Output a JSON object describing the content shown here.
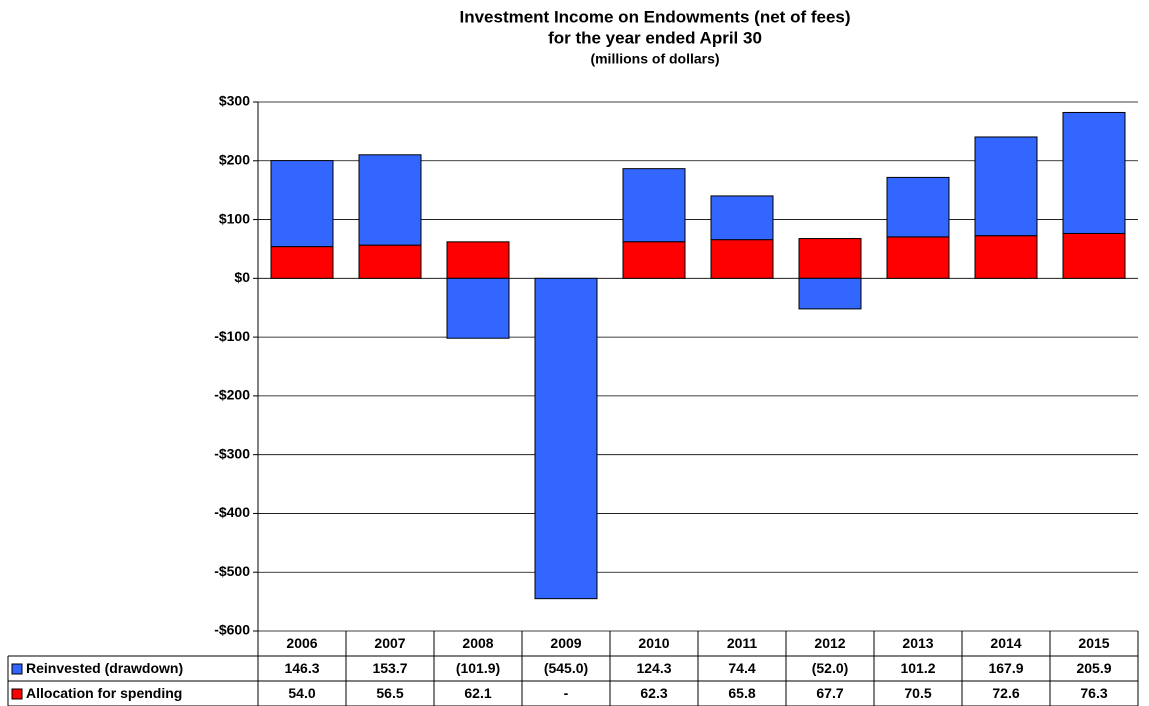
{
  "chart_data": {
    "type": "stacked-bar",
    "title": "Investment Income on Endowments (net of fees)",
    "subtitle": "for the year ended April 30",
    "units_note": "(millions of dollars)",
    "categories": [
      "2006",
      "2007",
      "2008",
      "2009",
      "2010",
      "2011",
      "2012",
      "2013",
      "2014",
      "2015"
    ],
    "series": [
      {
        "name": "Reinvested (drawdown)",
        "color": "#3366ff",
        "values": [
          146.3,
          153.7,
          -101.9,
          -545.0,
          124.3,
          74.4,
          -52.0,
          101.2,
          167.9,
          205.9
        ],
        "value_labels": [
          "146.3",
          "153.7",
          "(101.9)",
          "(545.0)",
          "124.3",
          "74.4",
          "(52.0)",
          "101.2",
          "167.9",
          "205.9"
        ]
      },
      {
        "name": "Allocation for spending",
        "color": "#ff0000",
        "values": [
          54.0,
          56.5,
          62.1,
          0,
          62.3,
          65.8,
          67.7,
          70.5,
          72.6,
          76.3
        ],
        "value_labels": [
          "54.0",
          "56.5",
          "62.1",
          "-",
          "62.3",
          "65.8",
          "67.7",
          "70.5",
          "72.6",
          "76.3"
        ]
      }
    ],
    "ylim": [
      -600,
      300
    ],
    "yticks": [
      {
        "value": -600,
        "label": "-$600"
      },
      {
        "value": -500,
        "label": "-$500"
      },
      {
        "value": -400,
        "label": "-$400"
      },
      {
        "value": -300,
        "label": "-$300"
      },
      {
        "value": -200,
        "label": "-$200"
      },
      {
        "value": -100,
        "label": "-$100"
      },
      {
        "value": 0,
        "label": "$0"
      },
      {
        "value": 100,
        "label": "$100"
      },
      {
        "value": 200,
        "label": "$200"
      },
      {
        "value": 300,
        "label": "$300"
      }
    ],
    "grid": true
  }
}
